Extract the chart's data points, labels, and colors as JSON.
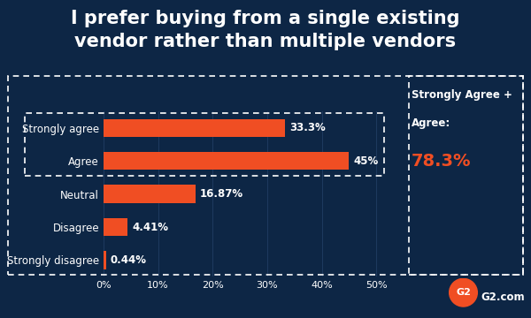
{
  "title_line1": "I prefer buying from a single existing",
  "title_line2": "vendor rather than multiple vendors",
  "categories": [
    "Strongly agree",
    "Agree",
    "Neutral",
    "Disagree",
    "Strongly disagree"
  ],
  "values": [
    33.3,
    45.0,
    16.87,
    4.41,
    0.44
  ],
  "labels": [
    "33.3%",
    "45%",
    "16.87%",
    "4.41%",
    "0.44%"
  ],
  "bar_color": "#F04E23",
  "bg_color": "#0d2645",
  "text_color": "#ffffff",
  "annotation_text_line1": "Strongly Agree +",
  "annotation_text_line2": "Agree:",
  "annotation_value": "78.3%",
  "annotation_color": "#F04E23",
  "xlim": [
    0,
    55
  ],
  "xticks": [
    0,
    10,
    20,
    30,
    40,
    50
  ],
  "xtick_labels": [
    "0%",
    "10%",
    "20%",
    "30%",
    "40%",
    "50%"
  ],
  "title_fontsize": 15,
  "label_fontsize": 8.5,
  "tick_fontsize": 8,
  "annotation_fontsize": 8.5,
  "g2_text": "G2.com",
  "g2_logo_text": "G2"
}
